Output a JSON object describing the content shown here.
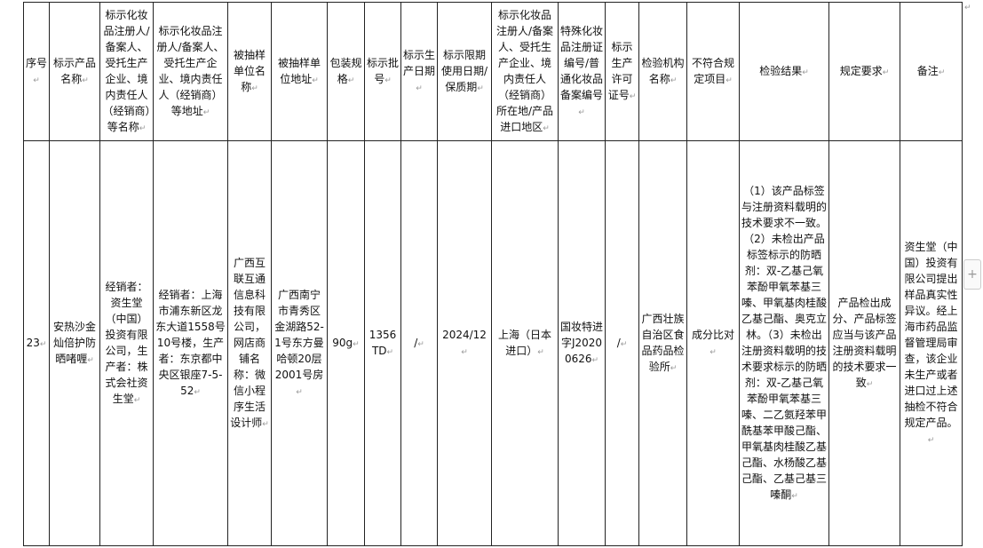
{
  "table": {
    "headers": [
      "序号",
      "标示产品名称",
      "标示化妆品注册人/备案人、受托生产企业、境内责任人（经销商）等名称",
      "标示化妆品注册人/备案人、受托生产企业、境内责任人（经销商）等地址",
      "被抽样单位名称",
      "被抽样单位地址",
      "包装规格",
      "标示批号",
      "标示生产日期",
      "标示限期使用日期/保质期",
      "标示化妆品注册人/备案人、受托生产企业、境内责任人（经销商）所在地/产品进口地区",
      "特殊化妆品注册证编号/普通化妆品备案编号",
      "标示生产许可证号",
      "检验机构名称",
      "不符合规定项目",
      "检验结果",
      "规定要求",
      "备注"
    ],
    "rows": [
      [
        "23",
        "安热沙金灿倍护防晒啫喱",
        "经销者：资生堂（中国）投资有限公司，生产者：株式会社资生堂",
        "经销者：上海市浦东新区龙东大道1558号10号楼，生产者：东京都中央区银座7-5-52",
        "广西互联互通信息科技有限公司，网店商铺名称：微信小程序生活设计师",
        "广西南宁市青秀区金湖路52-1号东方曼哈顿20层2001号房",
        "90g",
        "1356TD",
        "/",
        "2024/12",
        "上海（日本进口）",
        "国妆特进字J20200626",
        "/",
        "广西壮族自治区食品药品检验所",
        "成分比对",
        "（1）该产品标签与注册资料载明的技术要求不一致。（2）未检出产品标签标示的防晒剂：双-乙基己氧苯酚甲氧苯基三嗪、甲氧基肉桂酸乙基己酯、奥克立林。（3）未检出注册资料载明的技术要求标示的防晒剂：双-乙基己氧苯酚甲氧苯基三嗪、二乙氨羟苯甲酰基苯甲酸己酯、甲氧基肉桂酸乙基己酯、水杨酸乙基己酯、乙基己基三嗪酮",
        "产品检出成分、产品标签应当与该产品注册资料载明的技术要求一致",
        "资生堂（中国）投资有限公司提出样品真实性异议。经上海市药品监督管理局审查，该企业未生产或者进口过上述抽检不符合规定产品。"
      ]
    ]
  },
  "side_button": {
    "label": "+"
  }
}
